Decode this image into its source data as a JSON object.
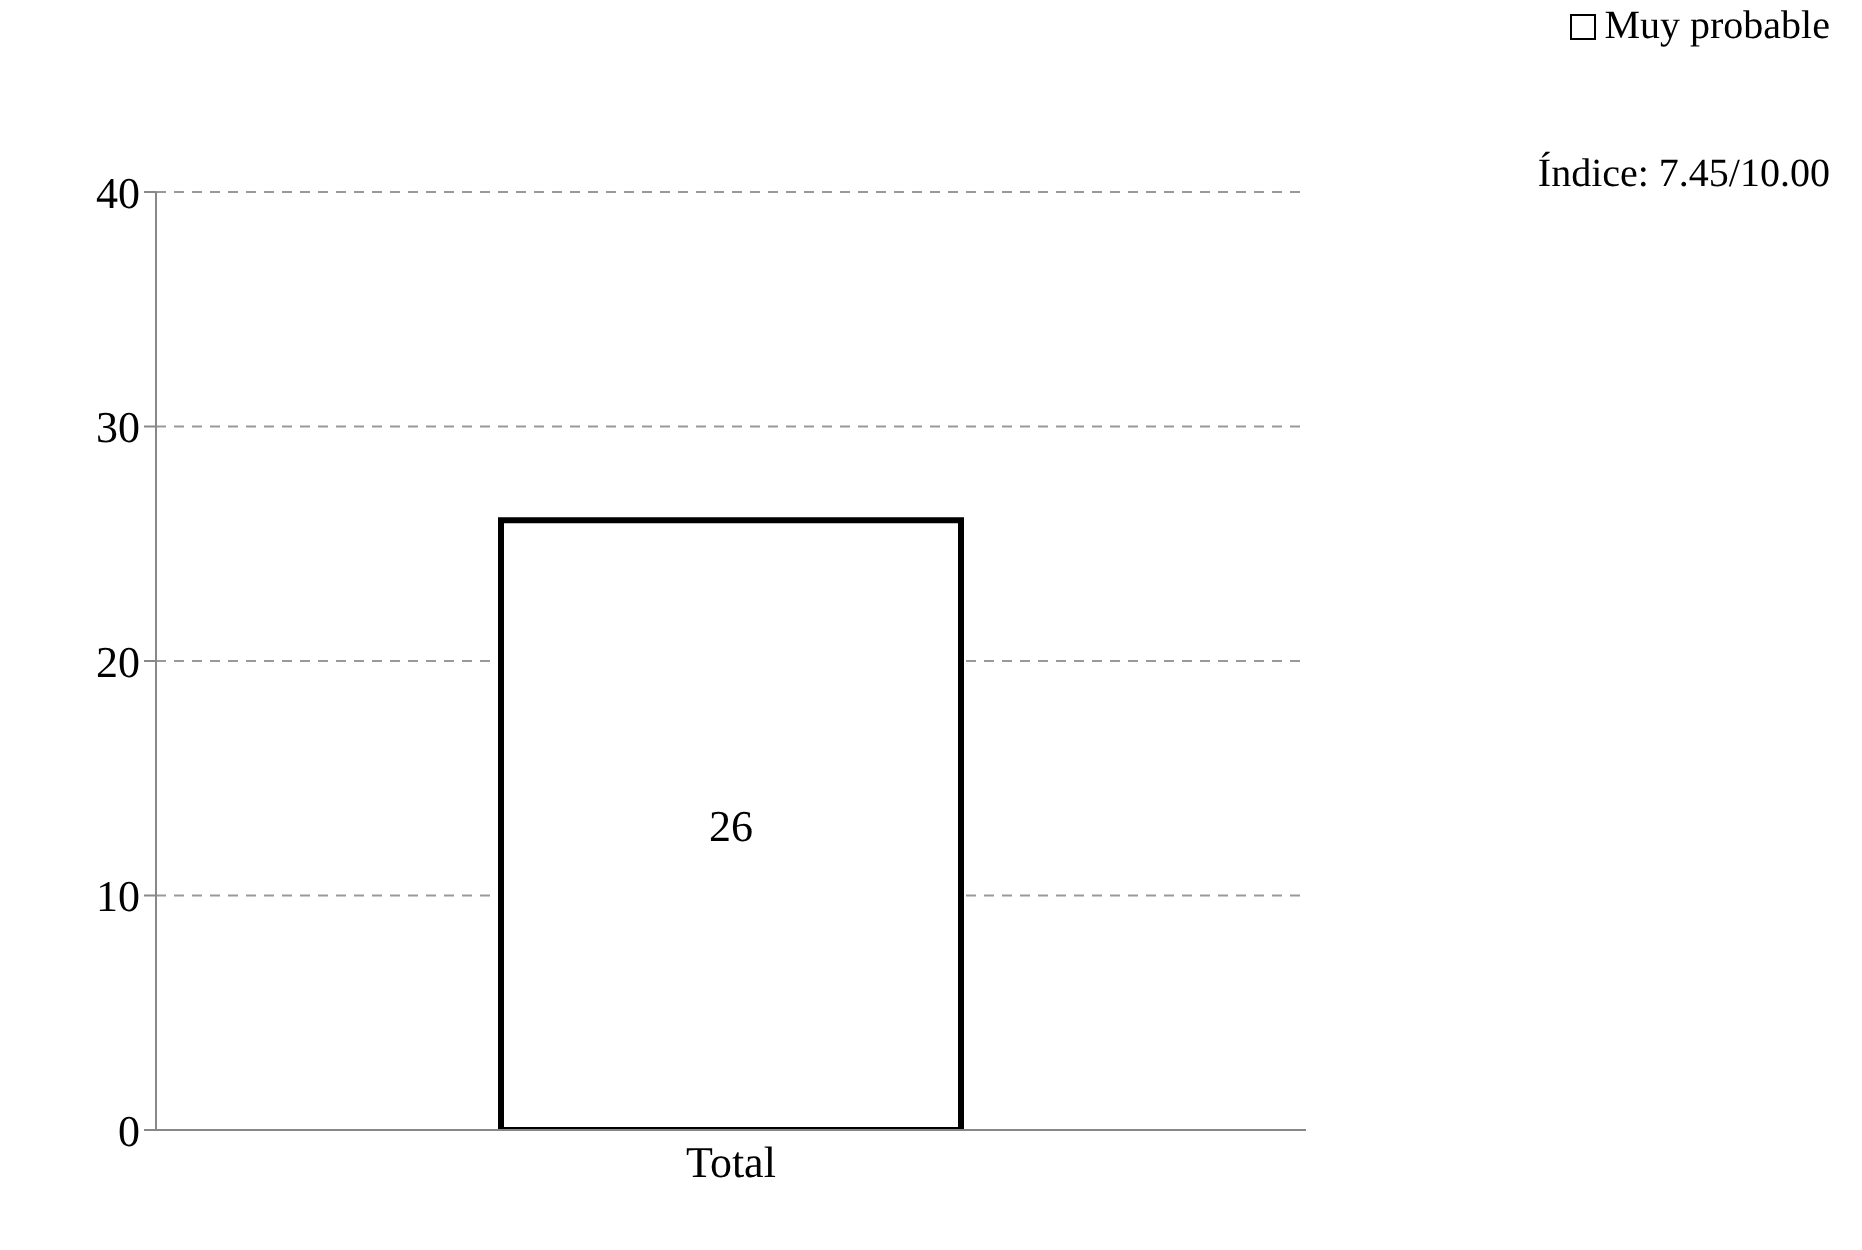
{
  "chart_data": {
    "type": "bar",
    "categories": [
      "Total"
    ],
    "series": [
      {
        "name": "Muy probable",
        "color": "#ffffff",
        "values": [
          26
        ]
      }
    ],
    "ylim": [
      0,
      40
    ],
    "yticks": [
      0,
      10,
      20,
      30,
      40
    ],
    "grid": "y",
    "legend": "top right",
    "data_labels": true,
    "annotations": [
      "Índice: 7.45/10.00"
    ]
  }
}
